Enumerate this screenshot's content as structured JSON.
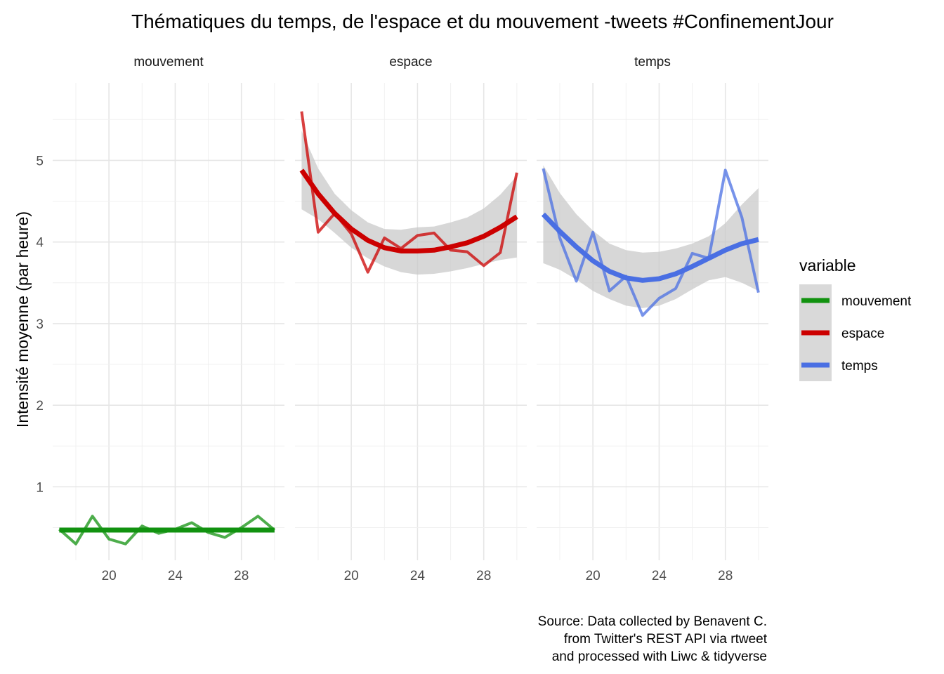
{
  "chart_data": {
    "type": "line",
    "title": "Thématiques du temps, de l'espace et du mouvement -tweets #ConfinementJour",
    "ylabel": "Intensité moyenne (par heure)",
    "xlabel": "",
    "caption": [
      "Source: Data collected by Benavent C.",
      "from Twitter's REST API via rtweet",
      "and processed with Liwc & tidyverse"
    ],
    "x_ticks": [
      20,
      24,
      28
    ],
    "y_ticks": [
      1,
      2,
      3,
      4,
      5
    ],
    "xlim": [
      16.6,
      30.6
    ],
    "ylim": [
      0.1,
      5.95
    ],
    "grid": true,
    "legend": {
      "title": "variable",
      "position": "right",
      "entries": [
        {
          "label": "mouvement",
          "color": "#11920f"
        },
        {
          "label": "espace",
          "color": "#cc0000"
        },
        {
          "label": "temps",
          "color": "#4a6fe3"
        }
      ]
    },
    "panels": [
      {
        "name": "mouvement",
        "color": "#11920f",
        "x": [
          17,
          18,
          19,
          20,
          21,
          22,
          23,
          24,
          25,
          26,
          27,
          28,
          29,
          30
        ],
        "values": [
          0.48,
          0.3,
          0.64,
          0.36,
          0.3,
          0.52,
          0.43,
          0.48,
          0.56,
          0.44,
          0.38,
          0.5,
          0.64,
          0.47
        ],
        "trend_x": [
          17,
          30
        ],
        "trend": [
          0.47,
          0.47
        ],
        "band_lower": [
          0.45,
          0.45
        ],
        "band_upper": [
          0.49,
          0.49
        ]
      },
      {
        "name": "espace",
        "color": "#cc0000",
        "x": [
          17,
          18,
          19,
          20,
          21,
          22,
          23,
          24,
          25,
          26,
          27,
          28,
          29,
          30
        ],
        "values": [
          5.6,
          4.12,
          4.35,
          4.1,
          3.63,
          4.05,
          3.92,
          4.08,
          4.11,
          3.9,
          3.88,
          3.71,
          3.87,
          4.85
        ],
        "trend_x": [
          17,
          18,
          19,
          20,
          21,
          22,
          23,
          24,
          25,
          26,
          27,
          28,
          29,
          30
        ],
        "trend": [
          4.88,
          4.59,
          4.35,
          4.16,
          4.02,
          3.93,
          3.89,
          3.89,
          3.9,
          3.94,
          3.99,
          4.07,
          4.18,
          4.31
        ],
        "band_lower": [
          4.4,
          4.28,
          4.11,
          3.93,
          3.8,
          3.7,
          3.63,
          3.6,
          3.61,
          3.64,
          3.68,
          3.73,
          3.78,
          3.81
        ],
        "band_upper": [
          5.36,
          4.9,
          4.59,
          4.39,
          4.24,
          4.16,
          4.15,
          4.18,
          4.19,
          4.24,
          4.3,
          4.41,
          4.58,
          4.81
        ]
      },
      {
        "name": "temps",
        "color": "#4a6fe3",
        "x": [
          17,
          18,
          19,
          20,
          21,
          22,
          23,
          24,
          25,
          26,
          27,
          28,
          29,
          30
        ],
        "values": [
          4.9,
          4.05,
          3.52,
          4.12,
          3.4,
          3.58,
          3.1,
          3.31,
          3.43,
          3.86,
          3.8,
          4.88,
          4.3,
          3.38
        ],
        "trend_x": [
          17,
          18,
          19,
          20,
          21,
          22,
          23,
          24,
          25,
          26,
          27,
          28,
          29,
          30
        ],
        "trend": [
          4.34,
          4.13,
          3.94,
          3.77,
          3.64,
          3.56,
          3.53,
          3.55,
          3.61,
          3.7,
          3.8,
          3.9,
          3.98,
          4.03
        ],
        "band_lower": [
          3.74,
          3.66,
          3.54,
          3.4,
          3.3,
          3.22,
          3.19,
          3.22,
          3.3,
          3.42,
          3.53,
          3.57,
          3.5,
          3.4
        ],
        "band_upper": [
          4.94,
          4.6,
          4.34,
          4.14,
          3.98,
          3.9,
          3.87,
          3.88,
          3.92,
          3.98,
          4.07,
          4.23,
          4.46,
          4.66
        ]
      }
    ]
  }
}
